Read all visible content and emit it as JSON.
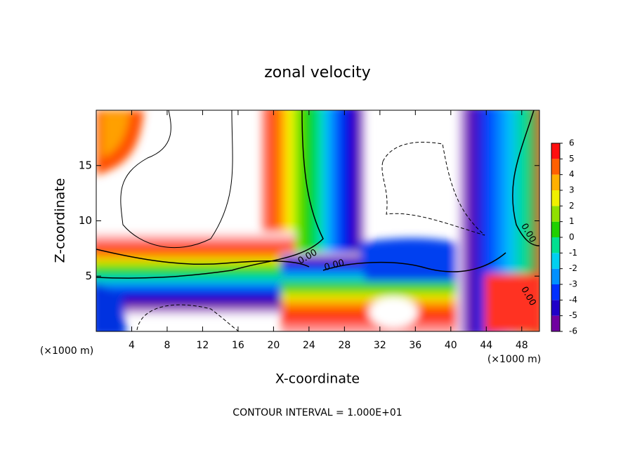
{
  "chart_data": {
    "type": "contour",
    "title": "zonal velocity",
    "xlabel": "X-coordinate",
    "ylabel": "Z-coordinate",
    "x_unit": "(×1000 m)",
    "footer": "CONTOUR INTERVAL = 1.000E+01",
    "xlim": [
      0,
      50
    ],
    "xticks": [
      4,
      8,
      12,
      16,
      20,
      24,
      28,
      32,
      36,
      40,
      44,
      48
    ],
    "ylim": [
      0,
      20
    ],
    "yticks": [
      5,
      10,
      15
    ],
    "contour_labels": [
      "0.00",
      "0.00",
      "0.00",
      "0.00"
    ],
    "colorbar": {
      "levels": [
        -6,
        -5,
        -4,
        -3,
        -2,
        -1,
        0,
        1,
        2,
        3,
        4,
        5,
        6
      ],
      "colors": [
        "#7000a0",
        "#2000c8",
        "#0030ff",
        "#0090ff",
        "#00d0f0",
        "#00e090",
        "#20d000",
        "#90e000",
        "#f0f000",
        "#ffb000",
        "#ff6000",
        "#ff1010"
      ]
    }
  }
}
